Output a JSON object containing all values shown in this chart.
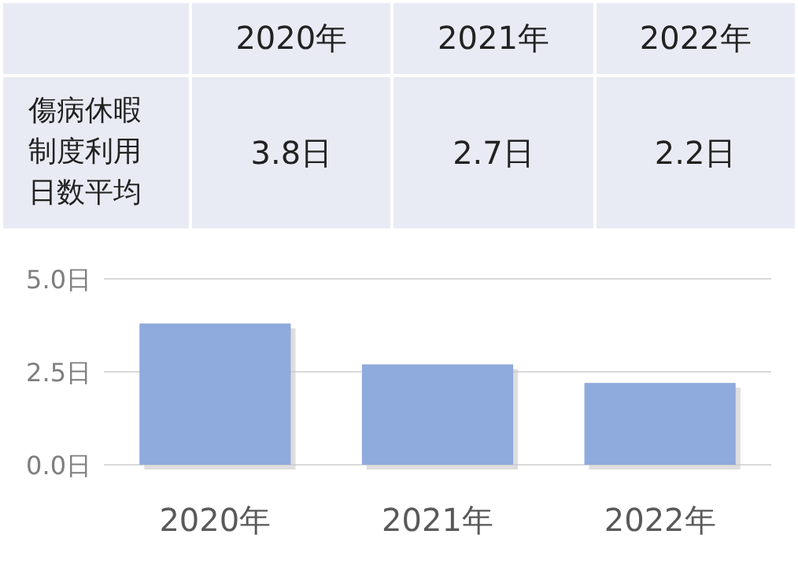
{
  "chart_data": {
    "type": "bar",
    "title": "傷病休暇制度利用日数平均",
    "categories": [
      "2020年",
      "2021年",
      "2022年"
    ],
    "values": [
      3.8,
      2.7,
      2.2
    ],
    "value_labels": [
      "3.8日",
      "2.7日",
      "2.2日"
    ],
    "color": "#8faadc",
    "ylim": [
      0,
      5
    ],
    "yticks": [
      {
        "value": 0,
        "label": "0.0日"
      },
      {
        "value": 2.5,
        "label": "2.5日"
      },
      {
        "value": 5,
        "label": "5.0日"
      }
    ],
    "grid": "y"
  }
}
